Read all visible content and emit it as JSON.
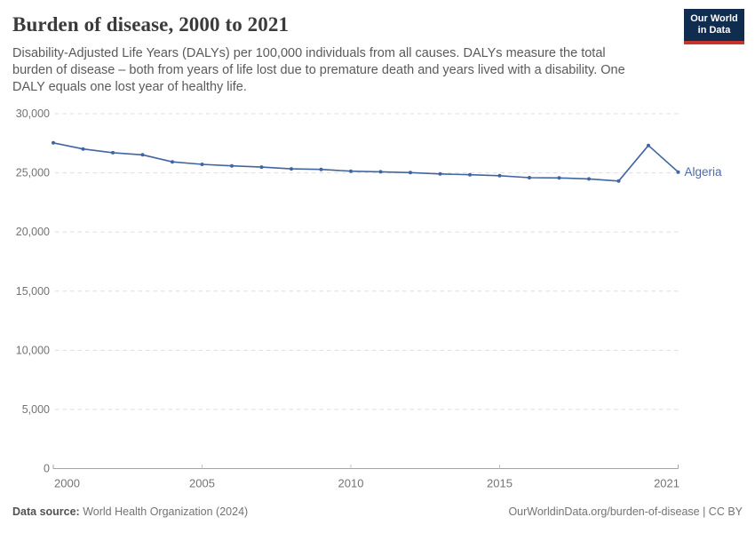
{
  "header": {
    "title": "Burden of disease, 2000 to 2021",
    "subtitle_lines": [
      "Disability-Adjusted Life Years (DALYs) per 100,000 individuals from all causes. DALYs measure the total",
      "burden of disease – both from years of life lost due to premature death and years lived with a disability. One",
      "DALY equals one lost year of healthy life."
    ],
    "logo": {
      "line1": "Our World",
      "line2": "in Data"
    }
  },
  "footer": {
    "datasource_label": "Data source:",
    "datasource_value": " World Health Organization (2024)",
    "link": "OurWorldinData.org/burden-of-disease | CC BY"
  },
  "colors": {
    "line_blue": "#4165a0",
    "entity_label": "#4b6ba7",
    "grid": "#dedede",
    "axis_line": "#a3a3a3",
    "tick": "#c4c4c4",
    "axis_text": "#737373",
    "logo_navy": "#102d50",
    "logo_red": "#c7342f"
  },
  "chart_data": {
    "type": "line",
    "title": "Burden of disease, 2000 to 2021",
    "series": [
      {
        "name": "Algeria",
        "x": [
          2000,
          2001,
          2002,
          2003,
          2004,
          2005,
          2006,
          2007,
          2008,
          2009,
          2010,
          2011,
          2012,
          2013,
          2014,
          2015,
          2016,
          2017,
          2018,
          2019,
          2020,
          2021
        ],
        "values": [
          27540,
          27020,
          26700,
          26520,
          25930,
          25720,
          25590,
          25490,
          25340,
          25290,
          25140,
          25090,
          25020,
          24910,
          24840,
          24760,
          24590,
          24570,
          24490,
          24310,
          27320,
          25070
        ]
      }
    ],
    "xlabel": "",
    "ylabel": "DALYs per 100,000 individuals",
    "xlim": [
      2000,
      2021
    ],
    "ylim": [
      0,
      30000
    ],
    "xticks": [
      2000,
      2005,
      2010,
      2015,
      2021
    ],
    "xtick_labels": [
      "2000",
      "2005",
      "2010",
      "2015",
      "2021"
    ],
    "yticks": [
      0,
      5000,
      10000,
      15000,
      20000,
      25000,
      30000
    ],
    "ytick_labels": [
      "0",
      "5,000",
      "10,000",
      "15,000",
      "20,000",
      "25,000",
      "30,000"
    ],
    "grid": "horizontal-dashed",
    "legend": "entity label at line end",
    "markers": true
  }
}
